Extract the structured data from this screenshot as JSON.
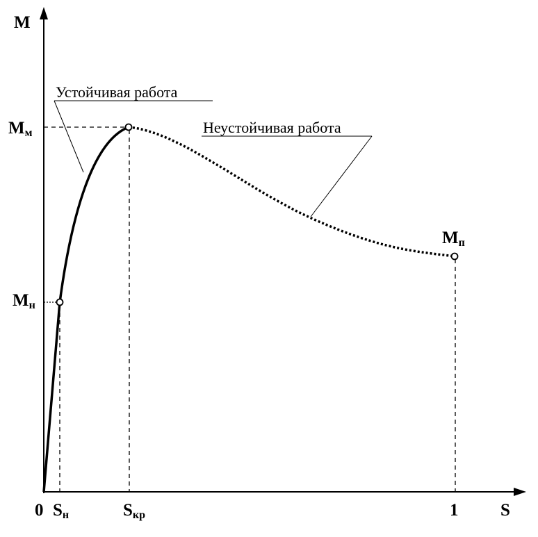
{
  "axes": {
    "y_label": "M",
    "x_label": "S",
    "origin": "0"
  },
  "x_marks": [
    {
      "base": "S",
      "sub": "н"
    },
    {
      "base": "S",
      "sub": "кр"
    },
    {
      "base": "1"
    }
  ],
  "y_marks": [
    {
      "base": "M",
      "sub": "м"
    },
    {
      "base": "M",
      "sub": "н"
    },
    {
      "base": "M",
      "sub": "п"
    }
  ],
  "annotations": [
    "Устойчивая работа",
    "Неустойчивая работа"
  ]
}
